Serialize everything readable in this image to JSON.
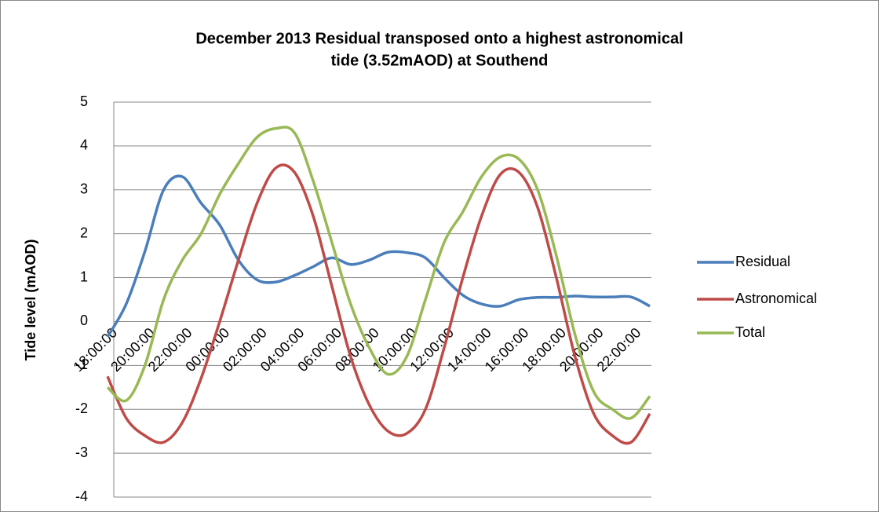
{
  "chart_data": {
    "type": "line",
    "title": [
      "December 2013 Residual transposed onto a highest astronomical",
      "tide (3.52mAOD) at Southend"
    ],
    "y_label": "Tide level (mAOD)",
    "categories": [
      "18:00:00",
      null,
      "20:00:00",
      null,
      "22:00:00",
      null,
      "00:00:00",
      null,
      "02:00:00",
      null,
      "04:00:00",
      null,
      "06:00:00",
      null,
      "08:00:00",
      null,
      "10:00:00",
      null,
      "12:00:00",
      null,
      "14:00:00",
      null,
      "16:00:00",
      null,
      "18:00:00",
      null,
      "20:00:00",
      null,
      "22:00:00",
      null
    ],
    "series": [
      {
        "name": "Residual",
        "color": "#4a7ebb",
        "values": [
          -0.35,
          0.4,
          1.6,
          3.0,
          3.3,
          2.7,
          2.2,
          1.4,
          0.95,
          0.9,
          1.05,
          1.25,
          1.45,
          1.3,
          1.4,
          1.58,
          1.57,
          1.45,
          1.0,
          0.6,
          0.4,
          0.35,
          0.5,
          0.55,
          0.55,
          0.58,
          0.56,
          0.56,
          0.56,
          0.35
        ]
      },
      {
        "name": "Astronomical",
        "color": "#be4b48",
        "values": [
          -1.25,
          -2.2,
          -2.6,
          -2.75,
          -2.3,
          -1.3,
          0.0,
          1.4,
          2.7,
          3.5,
          3.4,
          2.4,
          0.8,
          -0.8,
          -1.9,
          -2.5,
          -2.55,
          -2.0,
          -0.6,
          1.0,
          2.4,
          3.35,
          3.4,
          2.6,
          1.0,
          -0.8,
          -2.1,
          -2.6,
          -2.75,
          -2.1
        ]
      },
      {
        "name": "Total",
        "color": "#98b954",
        "values": [
          -1.5,
          -1.8,
          -1.0,
          0.5,
          1.4,
          2.0,
          2.9,
          3.6,
          4.2,
          4.4,
          4.3,
          3.2,
          1.8,
          0.4,
          -0.6,
          -1.2,
          -0.8,
          0.5,
          1.8,
          2.5,
          3.3,
          3.75,
          3.7,
          3.0,
          1.5,
          -0.3,
          -1.6,
          -2.0,
          -2.2,
          -1.7
        ]
      }
    ],
    "ylim": [
      -4,
      5
    ],
    "yticks": [
      -4,
      -3,
      -2,
      -1,
      0,
      1,
      2,
      3,
      4,
      5
    ],
    "grid": true,
    "legend": "right"
  }
}
